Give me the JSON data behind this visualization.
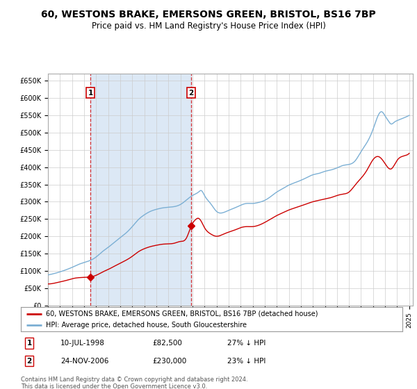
{
  "title": "60, WESTONS BRAKE, EMERSONS GREEN, BRISTOL, BS16 7BP",
  "subtitle": "Price paid vs. HM Land Registry's House Price Index (HPI)",
  "title_fontsize": 10,
  "subtitle_fontsize": 8.5,
  "ylim": [
    0,
    670000
  ],
  "yticks": [
    0,
    50000,
    100000,
    150000,
    200000,
    250000,
    300000,
    350000,
    400000,
    450000,
    500000,
    550000,
    600000,
    650000
  ],
  "ytick_labels": [
    "£0",
    "£50K",
    "£100K",
    "£150K",
    "£200K",
    "£250K",
    "£300K",
    "£350K",
    "£400K",
    "£450K",
    "£500K",
    "£550K",
    "£600K",
    "£650K"
  ],
  "sale1_date": 1998.53,
  "sale1_price": 82500,
  "sale1_label": "1",
  "sale1_text": "10-JUL-1998",
  "sale1_amount": "£82,500",
  "sale1_hpi": "27% ↓ HPI",
  "sale2_date": 2006.9,
  "sale2_price": 230000,
  "sale2_label": "2",
  "sale2_text": "24-NOV-2006",
  "sale2_amount": "£230,000",
  "sale2_hpi": "23% ↓ HPI",
  "legend_line1": "60, WESTONS BRAKE, EMERSONS GREEN, BRISTOL, BS16 7BP (detached house)",
  "legend_line2": "HPI: Average price, detached house, South Gloucestershire",
  "footer": "Contains HM Land Registry data © Crown copyright and database right 2024.\nThis data is licensed under the Open Government Licence v3.0.",
  "line_color_red": "#cc0000",
  "line_color_blue": "#7bafd4",
  "shading_color": "#dce8f5",
  "background_color": "#ffffff",
  "grid_color": "#cccccc",
  "sale_box_color": "#cc0000",
  "hpi_data_x": [
    1995.0,
    1995.5,
    1996.0,
    1996.5,
    1997.0,
    1997.5,
    1998.0,
    1998.5,
    1999.0,
    1999.5,
    2000.0,
    2000.5,
    2001.0,
    2001.5,
    2002.0,
    2002.5,
    2003.0,
    2003.5,
    2004.0,
    2004.5,
    2005.0,
    2005.5,
    2006.0,
    2006.5,
    2007.0,
    2007.5,
    2007.75,
    2008.0,
    2008.5,
    2009.0,
    2009.5,
    2010.0,
    2010.5,
    2011.0,
    2011.5,
    2012.0,
    2012.5,
    2013.0,
    2013.5,
    2014.0,
    2014.5,
    2015.0,
    2015.5,
    2016.0,
    2016.5,
    2017.0,
    2017.5,
    2018.0,
    2018.5,
    2019.0,
    2019.5,
    2020.0,
    2020.5,
    2021.0,
    2021.5,
    2022.0,
    2022.25,
    2022.5,
    2022.75,
    2023.0,
    2023.25,
    2023.5,
    2023.75,
    2024.0,
    2024.5,
    2025.0
  ],
  "hpi_data_y": [
    88000,
    92000,
    97000,
    103000,
    110000,
    118000,
    124000,
    130000,
    140000,
    155000,
    168000,
    182000,
    196000,
    210000,
    228000,
    248000,
    262000,
    272000,
    278000,
    282000,
    284000,
    286000,
    292000,
    305000,
    318000,
    328000,
    332000,
    318000,
    295000,
    272000,
    268000,
    275000,
    282000,
    290000,
    295000,
    295000,
    298000,
    304000,
    315000,
    328000,
    338000,
    348000,
    355000,
    362000,
    370000,
    378000,
    382000,
    388000,
    392000,
    398000,
    405000,
    408000,
    418000,
    445000,
    472000,
    510000,
    535000,
    555000,
    560000,
    548000,
    535000,
    525000,
    530000,
    535000,
    542000,
    550000
  ],
  "red_data_x": [
    1995.0,
    1995.5,
    1996.0,
    1996.5,
    1997.0,
    1997.5,
    1998.0,
    1998.53,
    1999.0,
    1999.5,
    2000.0,
    2000.5,
    2001.0,
    2001.5,
    2002.0,
    2002.5,
    2003.0,
    2003.5,
    2004.0,
    2004.5,
    2005.0,
    2005.5,
    2006.0,
    2006.5,
    2006.9,
    2007.25,
    2007.5,
    2007.75,
    2008.0,
    2008.5,
    2009.0,
    2009.5,
    2010.0,
    2010.5,
    2011.0,
    2011.5,
    2012.0,
    2012.5,
    2013.0,
    2013.5,
    2014.0,
    2014.5,
    2015.0,
    2015.5,
    2016.0,
    2016.5,
    2017.0,
    2017.5,
    2018.0,
    2018.5,
    2019.0,
    2019.5,
    2020.0,
    2020.5,
    2021.0,
    2021.5,
    2022.0,
    2022.5,
    2023.0,
    2023.5,
    2024.0,
    2024.5,
    2025.0
  ],
  "red_data_y": [
    62000,
    64000,
    68000,
    72000,
    77000,
    80000,
    81000,
    82500,
    87000,
    96000,
    104000,
    113000,
    122000,
    131000,
    142000,
    155000,
    164000,
    170000,
    174000,
    177000,
    178000,
    180000,
    185000,
    195000,
    230000,
    248000,
    252000,
    242000,
    225000,
    207000,
    200000,
    205000,
    212000,
    218000,
    225000,
    228000,
    228000,
    232000,
    240000,
    250000,
    260000,
    268000,
    276000,
    282000,
    288000,
    294000,
    300000,
    304000,
    308000,
    312000,
    318000,
    322000,
    328000,
    348000,
    368000,
    392000,
    422000,
    430000,
    410000,
    395000,
    420000,
    432000,
    440000
  ]
}
